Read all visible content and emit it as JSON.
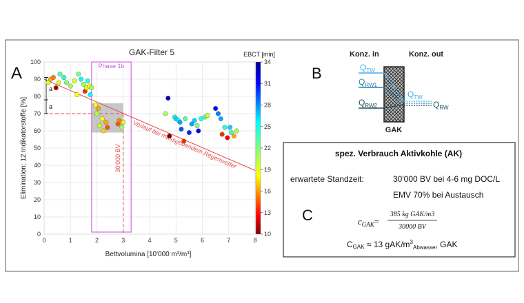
{
  "panel_labels": {
    "a": "A",
    "b": "B",
    "c": "C"
  },
  "chart_data": {
    "type": "scatter",
    "title": "GAK-Filter 5",
    "xlabel": "Bettvolumina [10'000 m³/m³]",
    "ylabel": "Elimination: 12 Indikatorstoffe [%]",
    "xlim": [
      0,
      8
    ],
    "ylim": [
      0,
      100
    ],
    "xticks": [
      0,
      1,
      2,
      3,
      4,
      5,
      6,
      7,
      8
    ],
    "yticks": [
      0,
      10,
      20,
      30,
      40,
      50,
      60,
      70,
      80,
      90,
      100
    ],
    "grid": true,
    "colorbar": {
      "label": "EBCT [min]",
      "min": 10,
      "max": 34,
      "ticks": [
        10,
        13,
        16,
        19,
        22,
        25,
        28,
        31,
        34
      ],
      "colormap": "jet"
    },
    "points": [
      {
        "x": 0.15,
        "y": 88,
        "c": 20
      },
      {
        "x": 0.25,
        "y": 90,
        "c": 17
      },
      {
        "x": 0.35,
        "y": 91,
        "c": 16
      },
      {
        "x": 0.45,
        "y": 85,
        "c": 11
      },
      {
        "x": 0.55,
        "y": 88,
        "c": 20
      },
      {
        "x": 0.6,
        "y": 93,
        "c": 23
      },
      {
        "x": 0.75,
        "y": 91,
        "c": 24
      },
      {
        "x": 0.85,
        "y": 88,
        "c": 22
      },
      {
        "x": 1.0,
        "y": 86,
        "c": 21
      },
      {
        "x": 1.15,
        "y": 89,
        "c": 20
      },
      {
        "x": 1.25,
        "y": 81,
        "c": 19
      },
      {
        "x": 1.3,
        "y": 93,
        "c": 22
      },
      {
        "x": 1.4,
        "y": 90,
        "c": 25
      },
      {
        "x": 1.5,
        "y": 87,
        "c": 21
      },
      {
        "x": 1.55,
        "y": 83,
        "c": 14
      },
      {
        "x": 1.6,
        "y": 85,
        "c": 20
      },
      {
        "x": 1.65,
        "y": 89,
        "c": 24
      },
      {
        "x": 1.72,
        "y": 86,
        "c": 19
      },
      {
        "x": 1.75,
        "y": 81,
        "c": 25
      },
      {
        "x": 1.8,
        "y": 85,
        "c": 21
      },
      {
        "x": 1.95,
        "y": 75,
        "c": 19
      },
      {
        "x": 2.0,
        "y": 70,
        "c": 21
      },
      {
        "x": 2.05,
        "y": 73,
        "c": 17
      },
      {
        "x": 2.1,
        "y": 63,
        "c": 20
      },
      {
        "x": 2.2,
        "y": 67,
        "c": 19
      },
      {
        "x": 2.25,
        "y": 60,
        "c": 18
      },
      {
        "x": 2.35,
        "y": 65,
        "c": 17
      },
      {
        "x": 2.4,
        "y": 62,
        "c": 15
      },
      {
        "x": 2.8,
        "y": 64,
        "c": 15
      },
      {
        "x": 2.85,
        "y": 66,
        "c": 16
      },
      {
        "x": 3.0,
        "y": 65,
        "c": 20
      },
      {
        "x": 2.95,
        "y": 62,
        "c": 21
      },
      {
        "x": 4.6,
        "y": 70,
        "c": 21
      },
      {
        "x": 4.7,
        "y": 79,
        "c": 33
      },
      {
        "x": 4.75,
        "y": 57,
        "c": 10
      },
      {
        "x": 4.95,
        "y": 68,
        "c": 24
      },
      {
        "x": 5.0,
        "y": 67,
        "c": 26
      },
      {
        "x": 5.1,
        "y": 66,
        "c": 25
      },
      {
        "x": 5.15,
        "y": 65,
        "c": 27
      },
      {
        "x": 5.2,
        "y": 61,
        "c": 29
      },
      {
        "x": 5.3,
        "y": 54,
        "c": 14
      },
      {
        "x": 5.35,
        "y": 67,
        "c": 23
      },
      {
        "x": 5.5,
        "y": 59,
        "c": 30
      },
      {
        "x": 5.6,
        "y": 64,
        "c": 27
      },
      {
        "x": 5.7,
        "y": 66,
        "c": 26
      },
      {
        "x": 5.8,
        "y": 63,
        "c": 22
      },
      {
        "x": 5.85,
        "y": 60,
        "c": 31
      },
      {
        "x": 5.95,
        "y": 67,
        "c": 24
      },
      {
        "x": 6.1,
        "y": 68,
        "c": 23
      },
      {
        "x": 6.2,
        "y": 69,
        "c": 20
      },
      {
        "x": 6.5,
        "y": 73,
        "c": 31
      },
      {
        "x": 6.6,
        "y": 70,
        "c": 28
      },
      {
        "x": 6.7,
        "y": 67,
        "c": 27
      },
      {
        "x": 6.75,
        "y": 58,
        "c": 14
      },
      {
        "x": 6.85,
        "y": 62,
        "c": 24
      },
      {
        "x": 6.95,
        "y": 56,
        "c": 13
      },
      {
        "x": 7.05,
        "y": 62,
        "c": 26
      },
      {
        "x": 7.1,
        "y": 59,
        "c": 23
      },
      {
        "x": 7.2,
        "y": 57,
        "c": 17
      },
      {
        "x": 7.3,
        "y": 60,
        "c": 21
      }
    ],
    "annotations": {
      "phase_label": "Phase 1b",
      "phase_x": [
        1.8,
        3.3
      ],
      "phase_y": [
        0,
        100
      ],
      "gray_x": [
        1.8,
        3.0
      ],
      "gray_y": [
        59,
        76
      ],
      "regression_label": "Verlauf bei massgebendem Regenwetter",
      "regression_line": {
        "x0": 0,
        "y0": 90,
        "x1": 8,
        "y1": 37
      },
      "bv_label": "30'000 BV",
      "bv_x": 3.0,
      "ref_y": 70,
      "a_label": "a"
    }
  },
  "diagram": {
    "konz_in": "Konz. in",
    "konz_out": "Konz. out",
    "q": "Q",
    "sub_tw": "TW",
    "sub_rw1": "RW1",
    "sub_rw2": "RW2",
    "sub_rw": "RW",
    "gak_label": "GAK",
    "colors": {
      "tw": "#3fb0e8",
      "rw1": "#2a7fb0",
      "rw2": "#1f4f5e"
    }
  },
  "info": {
    "heading": "spez. Verbrauch Aktivkohle (AK)",
    "line1_left": "erwartete Standzeit:",
    "line1_right": "30'000 BV bei 4-6 mg DOC/L",
    "line2": "EMV 70% bei Austausch",
    "eq_lhs": "c",
    "eq_lhs_sub": "GAK",
    "eq_num": "385 kg GAK/m3",
    "eq_den": "30000 BV",
    "result_c": "C",
    "result_sub": "GAK",
    "result_mid": " ≈ 13 gAK/m",
    "result_sup": "3",
    "result_sub2": "Abwasser",
    "result_end": "GAK"
  }
}
